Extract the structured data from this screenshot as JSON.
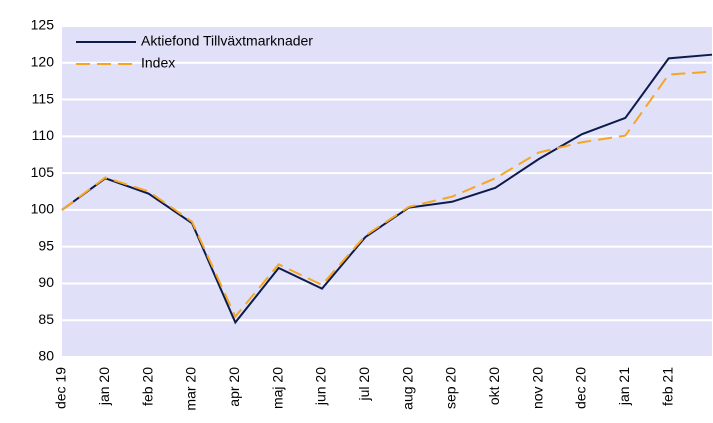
{
  "chart_data": {
    "type": "line",
    "categories": [
      "dec 19",
      "jan 20",
      "feb 20",
      "mar 20",
      "apr 20",
      "maj 20",
      "jun 20",
      "jul 20",
      "aug 20",
      "sep 20",
      "okt 20",
      "nov 20",
      "dec 20",
      "jan 21",
      "feb 21",
      null
    ],
    "series": [
      {
        "name": "Aktiefond Tillväxtmarknader",
        "color": "#0d1b4c",
        "dash": false,
        "values": [
          100,
          104.3,
          102.2,
          98.2,
          84.7,
          92.1,
          89.3,
          96.3,
          100.3,
          101.1,
          103.0,
          106.9,
          110.3,
          112.5,
          120.6,
          121.1
        ]
      },
      {
        "name": "Index",
        "color": "#f5a623",
        "dash": true,
        "values": [
          100,
          104.4,
          102.5,
          98.4,
          85.5,
          92.6,
          89.8,
          96.5,
          100.4,
          101.8,
          104.3,
          107.8,
          109.2,
          110.1,
          118.4,
          118.8
        ]
      }
    ],
    "ylim": [
      80,
      125
    ],
    "yticks": [
      80,
      85,
      90,
      95,
      100,
      105,
      110,
      115,
      120,
      125
    ],
    "grid": true,
    "background": "#e0e0f8",
    "legend": "top-left"
  }
}
